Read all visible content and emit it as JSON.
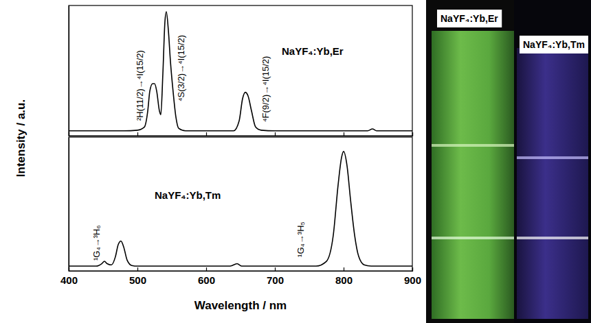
{
  "chart_data": [
    {
      "type": "line",
      "title": "NaYF₄:Yb,Er",
      "y_label": "Intensity / a.u.",
      "annotations": [
        "²H(11/2)→⁴I(15/2)",
        "⁴S(3/2)→⁴I(15/2)",
        "⁴F(9/2)→⁴I(15/2)"
      ],
      "x": [
        400,
        480,
        500,
        510,
        515,
        518,
        522,
        525,
        528,
        532,
        534,
        537,
        540,
        542,
        545,
        548,
        552,
        556,
        560,
        570,
        640,
        648,
        653,
        657,
        661,
        666,
        672,
        680,
        700,
        835,
        842,
        848,
        900
      ],
      "values": [
        0.04,
        0.04,
        0.045,
        0.07,
        0.2,
        0.36,
        0.42,
        0.42,
        0.36,
        0.2,
        0.17,
        0.5,
        0.92,
        1.0,
        0.85,
        0.6,
        0.35,
        0.15,
        0.06,
        0.04,
        0.04,
        0.12,
        0.3,
        0.35,
        0.32,
        0.2,
        0.07,
        0.045,
        0.04,
        0.04,
        0.055,
        0.04,
        0.04
      ],
      "color": "#000000",
      "xlim": [
        400,
        900
      ],
      "xticks": [
        400,
        500,
        600,
        700,
        800,
        900
      ],
      "ylim": [
        0,
        1.05
      ],
      "tick_labels": false
    },
    {
      "type": "line",
      "title": "NaYF₄:Yb,Tm",
      "x_label": "Wavelength / nm",
      "annotations": [
        "¹G₄→³H₆",
        "¹G₄→³H₅"
      ],
      "x": [
        400,
        440,
        448,
        452,
        456,
        462,
        468,
        472,
        476,
        480,
        485,
        492,
        500,
        635,
        645,
        652,
        760,
        775,
        785,
        792,
        797,
        800,
        805,
        810,
        816,
        822,
        830,
        840,
        900
      ],
      "values": [
        0.04,
        0.04,
        0.06,
        0.08,
        0.06,
        0.05,
        0.12,
        0.22,
        0.25,
        0.2,
        0.09,
        0.045,
        0.04,
        0.04,
        0.06,
        0.04,
        0.04,
        0.08,
        0.3,
        0.72,
        0.95,
        1.0,
        0.88,
        0.6,
        0.3,
        0.12,
        0.05,
        0.04,
        0.04
      ],
      "color": "#000000",
      "xlim": [
        400,
        900
      ],
      "xticks": [
        400,
        500,
        600,
        700,
        800,
        900
      ],
      "ylim": [
        0,
        1.12
      ],
      "tick_labels": "x"
    }
  ],
  "photo": {
    "labels": [
      "NaYF₄:Yb,Er",
      "NaYF₄:Yb,Tm"
    ]
  }
}
